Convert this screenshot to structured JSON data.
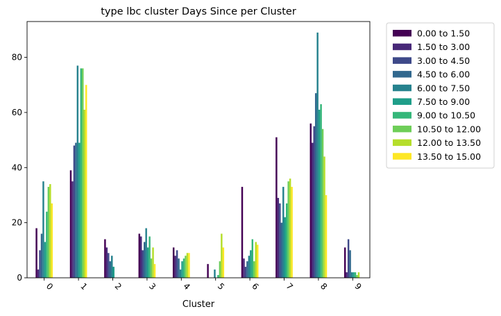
{
  "chart_data": {
    "type": "bar",
    "title": "type lbc cluster Days Since per Cluster",
    "xlabel": "Cluster",
    "ylabel": "",
    "ylim": [
      0,
      93
    ],
    "yticks": [
      0,
      20,
      40,
      60,
      80
    ],
    "grid": false,
    "legend_placement": "outside-top-right",
    "categories": [
      "0",
      "1",
      "2",
      "3",
      "4",
      "5",
      "6",
      "7",
      "8",
      "9"
    ],
    "series": [
      {
        "name": "0.00 to 1.50",
        "color": "#440154",
        "values": [
          18,
          39,
          14,
          16,
          11,
          5,
          33,
          51,
          56,
          11
        ]
      },
      {
        "name": "1.50 to 3.00",
        "color": "#482878",
        "values": [
          3,
          35,
          11,
          15,
          8,
          0,
          7,
          29,
          49,
          2
        ]
      },
      {
        "name": "3.00 to 4.50",
        "color": "#3e4989",
        "values": [
          10,
          48,
          9,
          10,
          10,
          0,
          4,
          27,
          55,
          14
        ]
      },
      {
        "name": "4.50 to 6.00",
        "color": "#31688e",
        "values": [
          16,
          49,
          6,
          13,
          7,
          0,
          6,
          20,
          67,
          10
        ]
      },
      {
        "name": "6.00 to 7.50",
        "color": "#26828e",
        "values": [
          35,
          77,
          8,
          18,
          3,
          3,
          8,
          33,
          89,
          2
        ]
      },
      {
        "name": "7.50 to 9.00",
        "color": "#1f9e89",
        "values": [
          13,
          49,
          4,
          11,
          6,
          0,
          10,
          22,
          61,
          2
        ]
      },
      {
        "name": "9.00 to 10.50",
        "color": "#35b779",
        "values": [
          24,
          76,
          0,
          15,
          7,
          1,
          14,
          27,
          63,
          2
        ]
      },
      {
        "name": "10.50 to 12.00",
        "color": "#6ece58",
        "values": [
          33,
          76,
          0,
          7,
          8,
          6,
          6,
          35,
          54,
          1
        ]
      },
      {
        "name": "12.00 to 13.50",
        "color": "#b5de2b",
        "values": [
          34,
          61,
          0,
          11,
          9,
          16,
          13,
          36,
          44,
          2
        ]
      },
      {
        "name": "13.50 to 15.00",
        "color": "#fde725",
        "values": [
          27,
          70,
          0,
          5,
          9,
          11,
          12,
          33,
          30,
          0
        ]
      }
    ]
  }
}
